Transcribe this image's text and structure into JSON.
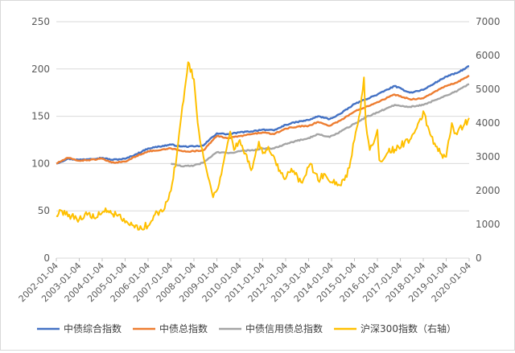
{
  "chart_data": {
    "type": "line",
    "title": "",
    "xlabel": "",
    "ylabel": "",
    "ylim_left": [
      0,
      250
    ],
    "ylim_right": [
      0,
      7000
    ],
    "y_ticks_left": [
      "0",
      "50",
      "100",
      "150",
      "200",
      "250"
    ],
    "y_ticks_right": [
      "0",
      "1000",
      "2000",
      "3000",
      "4000",
      "5000",
      "6000",
      "7000"
    ],
    "x_tick_labels": [
      "2002-01-04",
      "2003-01-04",
      "2004-01-04",
      "2005-01-04",
      "2006-01-04",
      "2007-01-04",
      "2008-01-04",
      "2009-01-04",
      "2010-01-04",
      "2011-01-04",
      "2012-01-04",
      "2013-01-04",
      "2014-01-04",
      "2015-01-04",
      "2016-01-04",
      "2017-01-04",
      "2018-01-04",
      "2019-01-04",
      "2020-01-04"
    ],
    "grid": "horizontal",
    "legend_position": "bottom",
    "series": [
      {
        "name": "中债综合指数",
        "axis": "left",
        "color": "#4472C4",
        "points": [
          [
            "2002-01-04",
            100
          ],
          [
            "2002-07-04",
            105
          ],
          [
            "2003-01-04",
            104
          ],
          [
            "2003-07-04",
            105
          ],
          [
            "2004-01-04",
            106
          ],
          [
            "2004-06-04",
            104
          ],
          [
            "2005-01-04",
            105
          ],
          [
            "2005-07-04",
            110
          ],
          [
            "2006-01-04",
            116
          ],
          [
            "2006-07-04",
            118
          ],
          [
            "2007-01-04",
            120
          ],
          [
            "2007-07-04",
            118
          ],
          [
            "2008-01-04",
            118
          ],
          [
            "2008-06-04",
            119
          ],
          [
            "2008-09-04",
            125
          ],
          [
            "2009-01-04",
            132
          ],
          [
            "2009-07-04",
            131
          ],
          [
            "2010-01-04",
            133
          ],
          [
            "2010-07-04",
            134
          ],
          [
            "2011-01-04",
            136
          ],
          [
            "2011-07-04",
            135
          ],
          [
            "2012-01-04",
            141
          ],
          [
            "2012-07-04",
            144
          ],
          [
            "2013-01-04",
            146
          ],
          [
            "2013-06-04",
            150
          ],
          [
            "2013-12-04",
            147
          ],
          [
            "2014-06-04",
            153
          ],
          [
            "2015-01-04",
            163
          ],
          [
            "2015-07-04",
            168
          ],
          [
            "2016-01-04",
            173
          ],
          [
            "2016-10-04",
            182
          ],
          [
            "2017-06-04",
            175
          ],
          [
            "2018-01-04",
            178
          ],
          [
            "2018-07-04",
            185
          ],
          [
            "2019-01-04",
            192
          ],
          [
            "2019-07-04",
            196
          ],
          [
            "2020-01-04",
            203
          ]
        ]
      },
      {
        "name": "中债总指数",
        "axis": "left",
        "color": "#ED7D31",
        "points": [
          [
            "2002-01-04",
            100
          ],
          [
            "2002-07-04",
            106
          ],
          [
            "2003-01-04",
            103
          ],
          [
            "2003-07-04",
            104
          ],
          [
            "2004-01-04",
            105
          ],
          [
            "2004-06-04",
            101
          ],
          [
            "2005-01-04",
            102
          ],
          [
            "2005-07-04",
            108
          ],
          [
            "2006-01-04",
            113
          ],
          [
            "2006-07-04",
            114
          ],
          [
            "2007-01-04",
            116
          ],
          [
            "2007-07-04",
            113
          ],
          [
            "2008-01-04",
            113
          ],
          [
            "2008-06-04",
            114
          ],
          [
            "2008-09-04",
            121
          ],
          [
            "2009-01-04",
            129
          ],
          [
            "2009-07-04",
            127
          ],
          [
            "2010-01-04",
            129
          ],
          [
            "2010-07-04",
            131
          ],
          [
            "2011-01-04",
            133
          ],
          [
            "2011-07-04",
            131
          ],
          [
            "2012-01-04",
            137
          ],
          [
            "2012-07-04",
            139
          ],
          [
            "2013-01-04",
            140
          ],
          [
            "2013-06-04",
            144
          ],
          [
            "2013-12-04",
            140
          ],
          [
            "2014-06-04",
            146
          ],
          [
            "2015-01-04",
            155
          ],
          [
            "2015-07-04",
            160
          ],
          [
            "2016-01-04",
            165
          ],
          [
            "2016-10-04",
            173
          ],
          [
            "2017-06-04",
            168
          ],
          [
            "2018-01-04",
            169
          ],
          [
            "2018-07-04",
            176
          ],
          [
            "2019-01-04",
            182
          ],
          [
            "2019-07-04",
            186
          ],
          [
            "2020-01-04",
            193
          ]
        ]
      },
      {
        "name": "中债信用债总指数",
        "axis": "left",
        "color": "#A5A5A5",
        "points": [
          [
            "2007-01-04",
            100
          ],
          [
            "2007-07-04",
            97
          ],
          [
            "2008-01-04",
            98
          ],
          [
            "2008-06-04",
            101
          ],
          [
            "2008-09-04",
            106
          ],
          [
            "2009-01-04",
            112
          ],
          [
            "2009-07-04",
            111
          ],
          [
            "2010-01-04",
            113
          ],
          [
            "2010-07-04",
            114
          ],
          [
            "2011-01-04",
            116
          ],
          [
            "2011-07-04",
            116
          ],
          [
            "2012-01-04",
            121
          ],
          [
            "2012-07-04",
            124
          ],
          [
            "2013-01-04",
            127
          ],
          [
            "2013-06-04",
            131
          ],
          [
            "2013-12-04",
            128
          ],
          [
            "2014-06-04",
            134
          ],
          [
            "2015-01-04",
            142
          ],
          [
            "2015-07-04",
            149
          ],
          [
            "2016-01-04",
            154
          ],
          [
            "2016-10-04",
            162
          ],
          [
            "2017-06-04",
            160
          ],
          [
            "2018-01-04",
            162
          ],
          [
            "2018-07-04",
            167
          ],
          [
            "2019-01-04",
            172
          ],
          [
            "2019-07-04",
            177
          ],
          [
            "2020-01-04",
            184
          ]
        ]
      },
      {
        "name": "沪深300指数（右轴）",
        "axis": "right",
        "color": "#FFC000",
        "points": [
          [
            "2002-01-04",
            1250
          ],
          [
            "2002-04-04",
            1400
          ],
          [
            "2002-09-04",
            1250
          ],
          [
            "2003-01-04",
            1150
          ],
          [
            "2003-04-04",
            1300
          ],
          [
            "2003-10-04",
            1200
          ],
          [
            "2004-01-04",
            1350
          ],
          [
            "2004-04-04",
            1400
          ],
          [
            "2004-09-04",
            1250
          ],
          [
            "2005-01-04",
            1050
          ],
          [
            "2005-06-04",
            900
          ],
          [
            "2005-09-04",
            950
          ],
          [
            "2006-01-04",
            950
          ],
          [
            "2006-04-04",
            1250
          ],
          [
            "2006-09-04",
            1400
          ],
          [
            "2007-01-04",
            2000
          ],
          [
            "2007-04-04",
            3000
          ],
          [
            "2007-07-04",
            4500
          ],
          [
            "2007-10-04",
            5800
          ],
          [
            "2008-01-04",
            5300
          ],
          [
            "2008-03-04",
            4000
          ],
          [
            "2008-06-04",
            3000
          ],
          [
            "2008-09-04",
            2300
          ],
          [
            "2008-11-04",
            1800
          ],
          [
            "2009-01-04",
            2000
          ],
          [
            "2009-04-04",
            2700
          ],
          [
            "2009-08-04",
            3750
          ],
          [
            "2009-10-04",
            3200
          ],
          [
            "2010-01-04",
            3500
          ],
          [
            "2010-04-04",
            3100
          ],
          [
            "2010-07-04",
            2600
          ],
          [
            "2010-11-04",
            3450
          ],
          [
            "2011-01-04",
            3100
          ],
          [
            "2011-04-04",
            3300
          ],
          [
            "2011-07-04",
            3000
          ],
          [
            "2011-10-04",
            2600
          ],
          [
            "2012-01-04",
            2350
          ],
          [
            "2012-04-04",
            2650
          ],
          [
            "2012-09-04",
            2250
          ],
          [
            "2013-01-04",
            2700
          ],
          [
            "2013-02-04",
            2800
          ],
          [
            "2013-06-04",
            2300
          ],
          [
            "2013-09-04",
            2500
          ],
          [
            "2014-01-04",
            2250
          ],
          [
            "2014-06-04",
            2150
          ],
          [
            "2014-09-04",
            2400
          ],
          [
            "2015-01-04",
            3500
          ],
          [
            "2015-04-04",
            4300
          ],
          [
            "2015-06-04",
            5350
          ],
          [
            "2015-07-04",
            4000
          ],
          [
            "2015-09-04",
            3200
          ],
          [
            "2016-01-04",
            3800
          ],
          [
            "2016-02-04",
            2900
          ],
          [
            "2016-06-04",
            3100
          ],
          [
            "2016-12-04",
            3300
          ],
          [
            "2017-06-04",
            3500
          ],
          [
            "2017-12-04",
            4100
          ],
          [
            "2018-01-04",
            4350
          ],
          [
            "2018-04-04",
            3800
          ],
          [
            "2018-07-04",
            3400
          ],
          [
            "2018-10-04",
            3100
          ],
          [
            "2019-01-04",
            3000
          ],
          [
            "2019-04-04",
            4000
          ],
          [
            "2019-06-04",
            3700
          ],
          [
            "2019-10-04",
            3900
          ],
          [
            "2020-01-04",
            4150
          ]
        ]
      }
    ]
  }
}
